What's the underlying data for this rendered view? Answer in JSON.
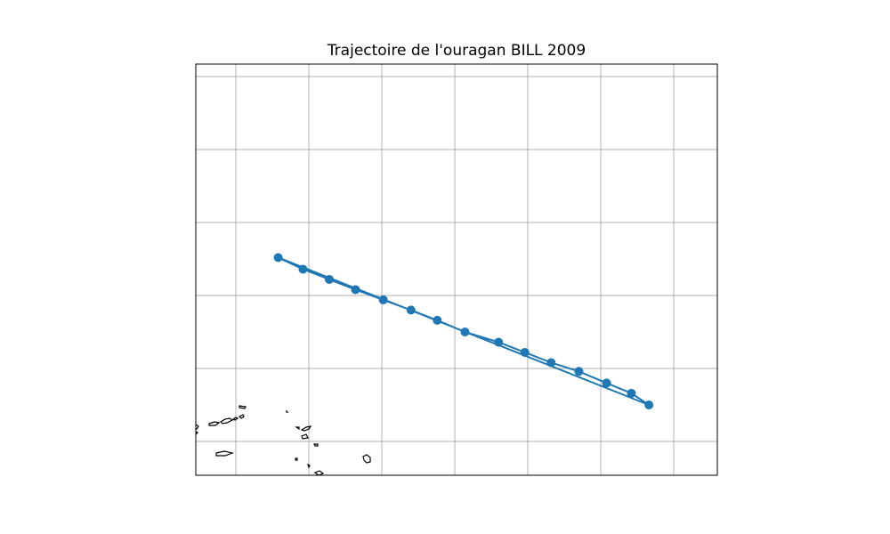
{
  "chart_data": {
    "type": "line",
    "title": "Trajectoire de l'ouragan BILL 2009",
    "xlabel": "",
    "ylabel": "",
    "grid": true,
    "projection": "plate-carree",
    "series": [
      {
        "color": "#1f77b4",
        "marker": "circle",
        "points_out": [
          [
            -56.7,
            17.5
          ],
          [
            -57.9,
            18.3
          ],
          [
            -59.6,
            19.0
          ],
          [
            -61.5,
            19.8
          ],
          [
            -63.4,
            20.4
          ],
          [
            -65.2,
            21.1
          ],
          [
            -67.0,
            21.8
          ],
          [
            -69.3,
            22.5
          ],
          [
            -71.2,
            23.3
          ],
          [
            -73.0,
            24.0
          ],
          [
            -74.9,
            24.7
          ],
          [
            -76.8,
            25.4
          ],
          [
            -78.6,
            26.1
          ],
          [
            -80.4,
            26.8
          ],
          [
            -82.1,
            27.6
          ]
        ],
        "points_return": [
          [
            -82.1,
            27.6
          ],
          [
            -56.7,
            17.5
          ]
        ]
      }
    ]
  }
}
